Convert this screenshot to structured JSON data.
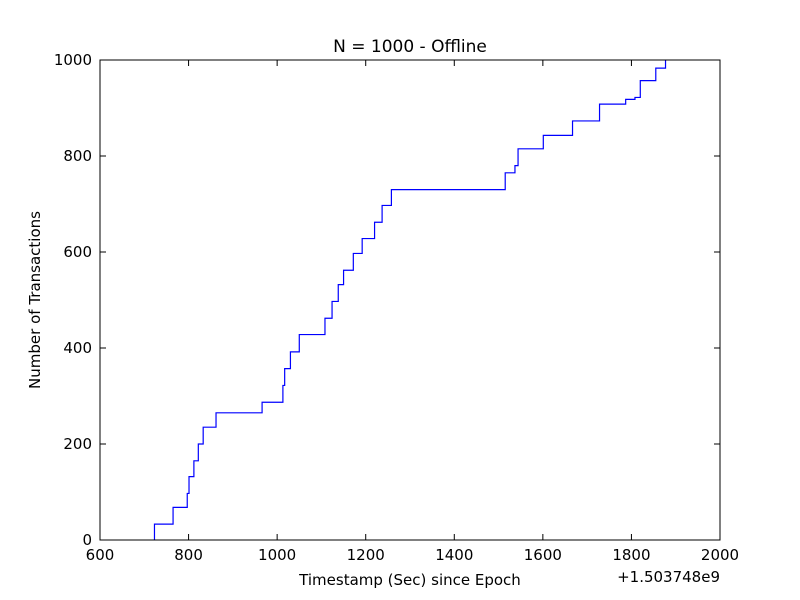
{
  "chart_data": {
    "type": "line",
    "title": "N = 1000 - Offline",
    "xlabel": "Timestamp (Sec) since Epoch",
    "ylabel": "Number of Transactions",
    "x_offset_label": "+1.503748e9",
    "xlim": [
      600,
      2000
    ],
    "ylim": [
      0,
      1000
    ],
    "xticks": [
      600,
      800,
      1000,
      1200,
      1400,
      1600,
      1800,
      2000
    ],
    "yticks": [
      0,
      200,
      400,
      600,
      800,
      1000
    ],
    "grid": false,
    "line_color": "#0000ff",
    "step": "post",
    "series": [
      {
        "x": [
          723,
          765,
          797,
          801,
          812,
          822,
          833,
          862,
          966,
          1013,
          1017,
          1030,
          1050,
          1108,
          1124,
          1138,
          1150,
          1172,
          1192,
          1220,
          1237,
          1258,
          1515,
          1537,
          1544,
          1601,
          1667,
          1728,
          1787,
          1808,
          1820,
          1855,
          1877
        ],
        "y": [
          33,
          68,
          97,
          132,
          165,
          200,
          235,
          265,
          287,
          322,
          357,
          392,
          428,
          462,
          497,
          532,
          562,
          597,
          628,
          662,
          697,
          730,
          765,
          780,
          815,
          843,
          873,
          908,
          918,
          922,
          957,
          983,
          1000
        ]
      }
    ]
  }
}
